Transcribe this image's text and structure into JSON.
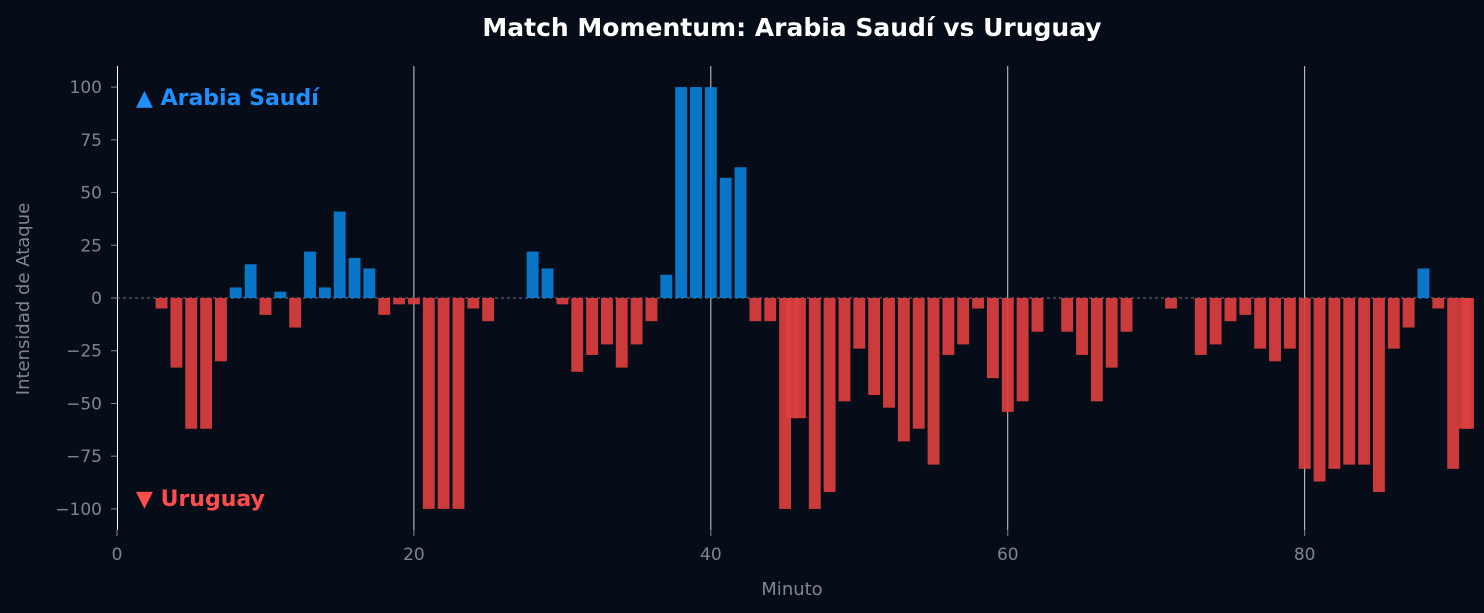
{
  "chart_data": {
    "type": "bar",
    "title": "Match Momentum: Arabia Saudí vs Uruguay",
    "xlabel": "Minuto",
    "ylabel": "Intensidad de Ataque",
    "xlim": [
      0,
      91
    ],
    "ylim": [
      -110,
      110
    ],
    "xticks": [
      0,
      20,
      40,
      60,
      80
    ],
    "yticks": [
      100,
      75,
      50,
      25,
      0,
      -25,
      -50,
      -75,
      -100
    ],
    "ytick_labels": [
      "100",
      "75",
      "50",
      "25",
      "0",
      "−25",
      "−50",
      "−75",
      "−100"
    ],
    "vertical_lines_at": [
      20,
      40,
      60,
      80
    ],
    "zero_line": "dashed",
    "series": [
      {
        "name": "▲ Arabia Saudí",
        "color": "#0a7fd8",
        "label_color": "#1e90ff",
        "legend_position": "top-left"
      },
      {
        "name": "▼ Uruguay",
        "color": "#dc3f3f",
        "label_color": "#ff4d4d",
        "legend_position": "bottom-left"
      }
    ],
    "x": [
      1,
      2,
      3,
      4,
      5,
      6,
      7,
      8,
      9,
      10,
      11,
      12,
      13,
      14,
      15,
      16,
      17,
      18,
      19,
      20,
      21,
      22,
      23,
      24,
      25,
      26,
      27,
      28,
      29,
      30,
      31,
      32,
      33,
      34,
      35,
      36,
      37,
      38,
      39,
      40,
      41,
      42,
      43,
      44,
      45,
      46,
      47,
      48,
      49,
      50,
      51,
      52,
      53,
      54,
      55,
      56,
      57,
      58,
      59,
      60,
      61,
      62,
      63,
      64,
      65,
      66,
      67,
      68,
      69,
      70,
      71,
      72,
      73,
      74,
      75,
      76,
      77,
      78,
      79,
      80,
      81,
      82,
      83,
      84,
      85,
      86,
      87,
      88,
      89,
      90,
      91
    ],
    "values": [
      0,
      0,
      -5,
      -33,
      -62,
      -62,
      -30,
      5,
      16,
      -8,
      3,
      -14,
      22,
      5,
      41,
      19,
      14,
      -8,
      -3,
      -3,
      -100,
      -100,
      -100,
      -5,
      -11,
      0,
      0,
      22,
      14,
      -3,
      -35,
      -27,
      -22,
      -33,
      -22,
      -11,
      11,
      100,
      100,
      100,
      57,
      62,
      -11,
      -11,
      -100,
      -57,
      -100,
      -92,
      -49,
      -24,
      -46,
      -52,
      -68,
      -62,
      -79,
      -27,
      -22,
      -5,
      -38,
      -54,
      -49,
      -16,
      0,
      -16,
      -27,
      -49,
      -33,
      -16,
      0,
      0,
      -5,
      0,
      -27,
      -22,
      -11,
      -8,
      -24,
      -30,
      -24,
      -81,
      -87,
      -81,
      -79,
      -79,
      -92,
      -24,
      -14,
      14,
      -5,
      -81,
      -62
    ],
    "overlay_bars": [
      {
        "x": 45.5,
        "value": -57
      },
      {
        "x": 90.8,
        "value": -62
      }
    ],
    "grid": false
  }
}
